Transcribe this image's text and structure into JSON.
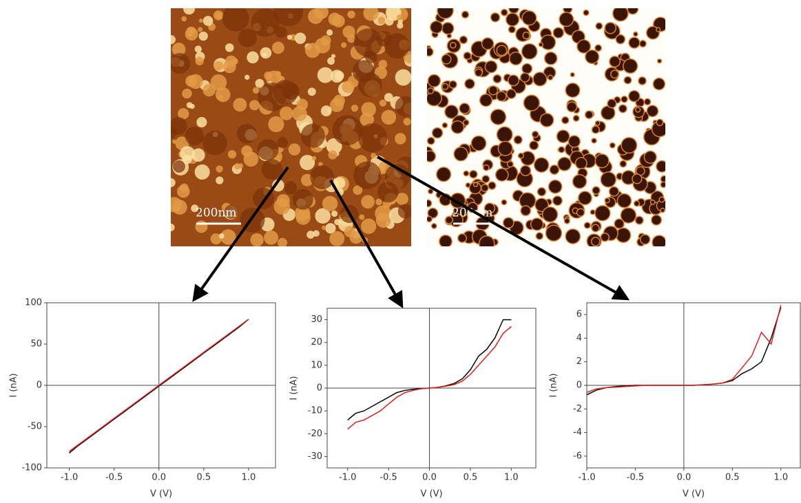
{
  "images": [
    {
      "scale_bar": "200nm"
    },
    {
      "scale_bar": "200nm"
    }
  ],
  "chart_data": [
    {
      "type": "line",
      "x_label": "V (V)",
      "y_label": "I (nA)",
      "x": [
        -1.0,
        -0.9,
        -0.8,
        -0.7,
        -0.6,
        -0.5,
        -0.4,
        -0.3,
        -0.2,
        -0.1,
        0.0,
        0.1,
        0.2,
        0.3,
        0.4,
        0.5,
        0.6,
        0.7,
        0.8,
        0.9,
        1.0
      ],
      "series": [
        {
          "color": "#000000",
          "values": [
            -82,
            -73,
            -65,
            -57,
            -49,
            -41,
            -33,
            -25,
            -17,
            -9,
            -1,
            7,
            15,
            23,
            31,
            39,
            47,
            55,
            63,
            71,
            80
          ]
        },
        {
          "color": "#e0201a",
          "values": [
            -80,
            -72,
            -64,
            -56,
            -48,
            -40,
            -32,
            -24,
            -16,
            -8,
            0,
            8,
            16,
            24,
            32,
            40,
            48,
            56,
            64,
            72,
            80
          ]
        }
      ],
      "xlim": [
        -1.25,
        1.3
      ],
      "ylim": [
        -100,
        100
      ],
      "xticks": [
        {
          "value": -1,
          "label": "-1.0"
        },
        {
          "value": -0.5,
          "label": "-0.5"
        },
        {
          "value": 0,
          "label": "0.0"
        },
        {
          "value": 0.5,
          "label": "0.5"
        },
        {
          "value": 1,
          "label": "1.0"
        }
      ],
      "yticks": [
        -100,
        -50,
        0,
        50,
        100
      ]
    },
    {
      "type": "line",
      "x_label": "V (V)",
      "y_label": "I (nA)",
      "x": [
        -1.0,
        -0.9,
        -0.8,
        -0.7,
        -0.6,
        -0.5,
        -0.4,
        -0.3,
        -0.2,
        -0.1,
        0.0,
        0.1,
        0.2,
        0.3,
        0.4,
        0.5,
        0.6,
        0.7,
        0.8,
        0.9,
        1.0
      ],
      "series": [
        {
          "color": "#000000",
          "values": [
            -14,
            -11,
            -10,
            -8,
            -6,
            -4,
            -2,
            -1,
            -0.5,
            -0.2,
            0,
            0.3,
            1,
            2,
            4,
            8,
            14,
            17,
            22,
            30,
            30
          ]
        },
        {
          "color": "#e0201a",
          "values": [
            -18,
            -15,
            -14,
            -12,
            -10,
            -7,
            -4,
            -2,
            -1,
            -0.3,
            0,
            0.3,
            0.8,
            1.5,
            3,
            6,
            10,
            14,
            18,
            24,
            27
          ]
        }
      ],
      "xlim": [
        -1.25,
        1.3
      ],
      "ylim": [
        -35,
        35
      ],
      "xticks": [
        {
          "value": -1,
          "label": "-1.0"
        },
        {
          "value": -0.5,
          "label": "-0.5"
        },
        {
          "value": 0,
          "label": "0.0"
        },
        {
          "value": 0.5,
          "label": "0.5"
        },
        {
          "value": 1,
          "label": "1.0"
        }
      ],
      "yticks": [
        -30,
        -20,
        -10,
        0,
        10,
        20,
        30
      ]
    },
    {
      "type": "line",
      "x_label": "V (V)",
      "y_label": "I (nA)",
      "x": [
        -1.0,
        -0.9,
        -0.8,
        -0.7,
        -0.6,
        -0.5,
        -0.4,
        -0.3,
        -0.2,
        -0.1,
        0.0,
        0.1,
        0.2,
        0.3,
        0.4,
        0.5,
        0.6,
        0.7,
        0.8,
        0.9,
        1.0
      ],
      "series": [
        {
          "color": "#000000",
          "values": [
            -0.8,
            -0.4,
            -0.2,
            -0.1,
            -0.05,
            0,
            0,
            0,
            0,
            0,
            0,
            0,
            0.05,
            0.1,
            0.2,
            0.4,
            1.0,
            1.4,
            2.0,
            4.0,
            6.6
          ]
        },
        {
          "color": "#e0201a",
          "values": [
            -0.6,
            -0.3,
            -0.2,
            -0.15,
            -0.1,
            -0.05,
            0,
            0,
            0,
            0,
            0,
            0,
            0.05,
            0.1,
            0.2,
            0.5,
            1.5,
            2.5,
            4.5,
            3.5,
            6.8
          ]
        }
      ],
      "xlim": [
        -1.0,
        1.2
      ],
      "ylim": [
        -7,
        7
      ],
      "xticks": [
        {
          "value": -1,
          "label": "-1.0"
        },
        {
          "value": -0.5,
          "label": "-0.5"
        },
        {
          "value": 0,
          "label": "0.0"
        },
        {
          "value": 0.5,
          "label": "0.5"
        },
        {
          "value": 1,
          "label": "1.0"
        }
      ],
      "yticks": [
        -6,
        -4,
        -2,
        0,
        2,
        4,
        6
      ]
    }
  ]
}
